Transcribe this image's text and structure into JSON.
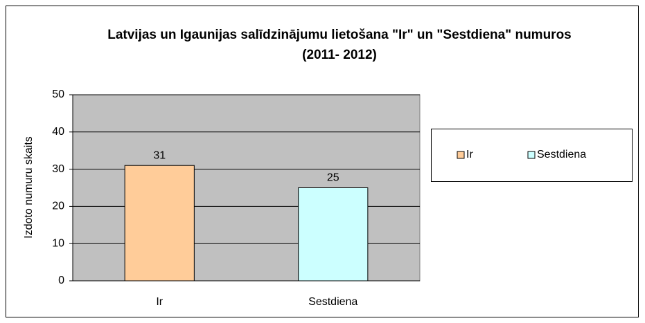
{
  "chart_data": {
    "type": "bar",
    "title": "Latvijas un Igaunijas salīdzinājumu lietošana \"Ir\" un \"Sestdiena\" numuros (2011- 2012)",
    "y_label": "Izdoto numuru skaits",
    "categories": [
      "Ir",
      "Sestdiena"
    ],
    "values": [
      31,
      25
    ],
    "colors": [
      "#ffcc99",
      "#ccffff"
    ],
    "ylim": [
      0,
      50
    ],
    "yticks": [
      0,
      10,
      20,
      30,
      40,
      50
    ],
    "grid": true,
    "legend": "right"
  }
}
